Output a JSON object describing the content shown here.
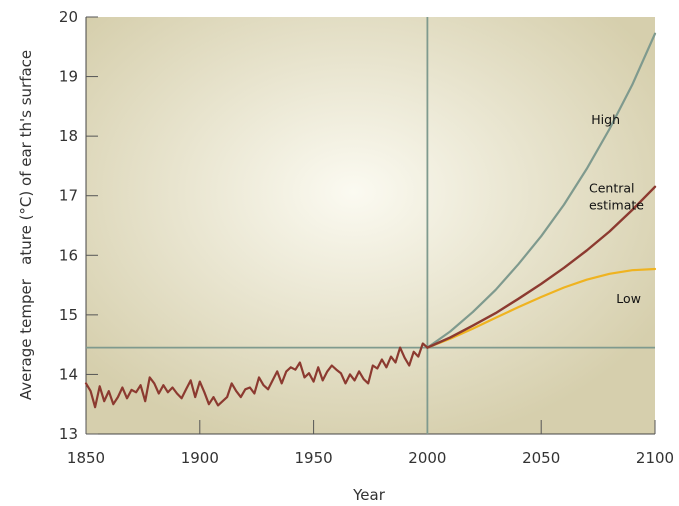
{
  "chart_data": {
    "type": "line",
    "title": "",
    "xlabel": "Year",
    "ylabel": "Average temper   ature (°C) of ear th's surface",
    "xlim": [
      1850,
      2100
    ],
    "ylim": [
      13,
      20
    ],
    "xticks": [
      "1850",
      "1900",
      "1950",
      "2000",
      "2050",
      "2100"
    ],
    "yticks": [
      "13",
      "14",
      "15",
      "16",
      "17",
      "18",
      "19",
      "20"
    ],
    "reference_lines": {
      "x": 2000,
      "y": 14.45
    },
    "colors": {
      "historical": "#8c3a30",
      "high": "#7f9a8e",
      "central": "#8c3a30",
      "low": "#efb320",
      "reference": "#7f9a8e",
      "plot_bg": "#d6cfad",
      "plot_glow": "#fbfaf1"
    },
    "series": [
      {
        "key": "historical",
        "x": [
          1850,
          1852,
          1854,
          1856,
          1858,
          1860,
          1862,
          1864,
          1866,
          1868,
          1870,
          1872,
          1874,
          1876,
          1878,
          1880,
          1882,
          1884,
          1886,
          1888,
          1890,
          1892,
          1894,
          1896,
          1898,
          1900,
          1902,
          1904,
          1906,
          1908,
          1910,
          1912,
          1914,
          1916,
          1918,
          1920,
          1922,
          1924,
          1926,
          1928,
          1930,
          1932,
          1934,
          1936,
          1938,
          1940,
          1942,
          1944,
          1946,
          1948,
          1950,
          1952,
          1954,
          1956,
          1958,
          1960,
          1962,
          1964,
          1966,
          1968,
          1970,
          1972,
          1974,
          1976,
          1978,
          1980,
          1982,
          1984,
          1986,
          1988,
          1990,
          1992,
          1994,
          1996,
          1998,
          2000
        ],
        "values": [
          13.85,
          13.72,
          13.45,
          13.8,
          13.55,
          13.72,
          13.5,
          13.62,
          13.78,
          13.6,
          13.74,
          13.7,
          13.82,
          13.55,
          13.95,
          13.85,
          13.68,
          13.82,
          13.7,
          13.78,
          13.68,
          13.6,
          13.75,
          13.9,
          13.62,
          13.88,
          13.7,
          13.5,
          13.62,
          13.48,
          13.55,
          13.62,
          13.85,
          13.72,
          13.62,
          13.75,
          13.78,
          13.68,
          13.95,
          13.82,
          13.75,
          13.9,
          14.05,
          13.85,
          14.05,
          14.12,
          14.08,
          14.2,
          13.95,
          14.02,
          13.88,
          14.12,
          13.9,
          14.05,
          14.15,
          14.08,
          14.02,
          13.85,
          14.0,
          13.9,
          14.05,
          13.92,
          13.85,
          14.15,
          14.1,
          14.25,
          14.12,
          14.3,
          14.2,
          14.45,
          14.28,
          14.15,
          14.38,
          14.3,
          14.52,
          14.45
        ]
      },
      {
        "key": "high",
        "name": "High",
        "x": [
          2000,
          2010,
          2020,
          2030,
          2040,
          2050,
          2060,
          2070,
          2080,
          2090,
          2100
        ],
        "values": [
          14.45,
          14.72,
          15.05,
          15.42,
          15.85,
          16.32,
          16.85,
          17.45,
          18.12,
          18.86,
          19.72
        ]
      },
      {
        "key": "central",
        "name": "Central estimate",
        "x": [
          2000,
          2010,
          2020,
          2030,
          2040,
          2050,
          2060,
          2070,
          2080,
          2090,
          2100
        ],
        "values": [
          14.45,
          14.62,
          14.82,
          15.03,
          15.27,
          15.52,
          15.79,
          16.08,
          16.4,
          16.76,
          17.15
        ]
      },
      {
        "key": "low",
        "name": "Low",
        "x": [
          2000,
          2010,
          2020,
          2030,
          2040,
          2050,
          2060,
          2070,
          2080,
          2090,
          2100
        ],
        "values": [
          14.45,
          14.6,
          14.77,
          14.95,
          15.13,
          15.3,
          15.46,
          15.59,
          15.69,
          15.75,
          15.77
        ]
      }
    ],
    "annotations": [
      {
        "key": "high",
        "lines": [
          "High"
        ],
        "x": 2072,
        "y": 18.2
      },
      {
        "key": "central",
        "lines": [
          "Central",
          "estimate"
        ],
        "x": 2071,
        "y": 17.05
      },
      {
        "key": "low",
        "lines": [
          "Low"
        ],
        "x": 2083,
        "y": 15.2
      }
    ]
  }
}
